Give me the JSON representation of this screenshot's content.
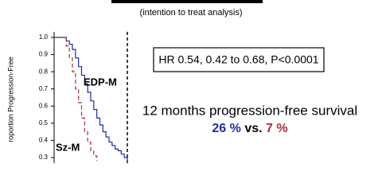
{
  "chart_data": {
    "type": "step",
    "subtitle": "(intention to treat analysis)",
    "y_label": "roportion Progression-Free",
    "annotation_box": "HR 0.54, 0.42 to 0.68, P<0.0001",
    "annotation_text": "12 months progression-free survival",
    "annotation_result": {
      "first": "26 %",
      "middle": "vs.",
      "second": "7 %"
    },
    "reference_line_x": 12,
    "xlim": [
      0,
      36
    ],
    "ylim": [
      0.3,
      1.0
    ],
    "yticks": [
      {
        "value": 1.0,
        "label": "1.0"
      },
      0.9,
      0.8,
      0.7,
      0.6,
      0.5,
      0.4,
      0.3
    ],
    "series": [
      {
        "name": "EDP-M",
        "color": "#1f2d9e",
        "dash": false,
        "x": [
          0,
          1.5,
          2,
          2.5,
          3,
          3.5,
          4,
          4.5,
          5,
          5.5,
          6,
          6.5,
          7,
          7.5,
          8,
          8.5,
          9,
          9.5,
          10,
          10.5,
          11,
          11.5,
          12
        ],
        "values": [
          1.0,
          1.0,
          0.98,
          0.96,
          0.93,
          0.88,
          0.83,
          0.78,
          0.73,
          0.68,
          0.63,
          0.58,
          0.53,
          0.49,
          0.45,
          0.42,
          0.39,
          0.37,
          0.35,
          0.34,
          0.32,
          0.3,
          0.26
        ]
      },
      {
        "name": "Sz-M",
        "color": "#a3303c",
        "dash": true,
        "x": [
          0,
          1.5,
          2,
          2.5,
          3,
          3.5,
          4,
          4.5,
          5,
          5.5,
          6,
          6.5,
          7
        ],
        "values": [
          1.0,
          1.0,
          0.95,
          0.88,
          0.8,
          0.7,
          0.62,
          0.53,
          0.45,
          0.39,
          0.34,
          0.31,
          0.28
        ]
      }
    ]
  }
}
